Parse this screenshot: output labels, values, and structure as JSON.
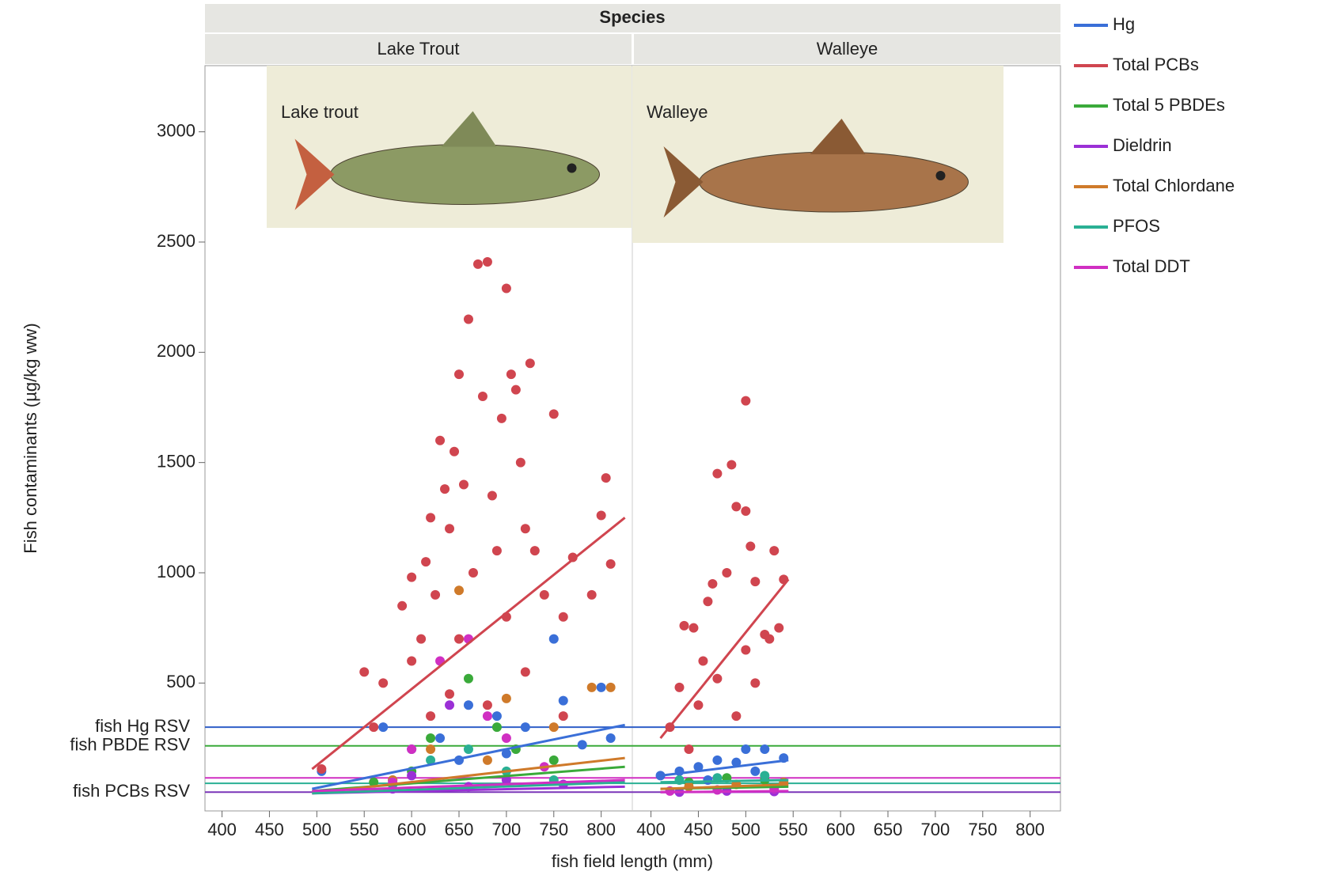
{
  "chart_data": {
    "type": "scatter",
    "title": "Species",
    "xlabel": "fish field length (mm)",
    "ylabel": "Fish contaminants (µg/kg ww)",
    "xlim": [
      382,
      832
    ],
    "ylim": [
      -80,
      3300
    ],
    "xticks": [
      400,
      450,
      500,
      550,
      600,
      650,
      700,
      750,
      800
    ],
    "yticks": [
      500,
      1000,
      1500,
      2000,
      2500,
      3000
    ],
    "panels": [
      {
        "name": "Lake Trout",
        "image_label": "Lake trout"
      },
      {
        "name": "Walleye",
        "image_label": "Walleye"
      }
    ],
    "reference_lines": [
      {
        "label": "fish Hg RSV",
        "value": 300,
        "color": "#2f5fc8"
      },
      {
        "label": "fish PBDE RSV",
        "value": 215,
        "color": "#3aaa3a"
      },
      {
        "value": 70,
        "color": "#d02fc2"
      },
      {
        "value": 45,
        "color": "#2ab094"
      },
      {
        "label": "fish PCBs RSV",
        "value": 5,
        "color": "#7a35b8",
        "label_color": "#d0454f"
      }
    ],
    "series": [
      {
        "name": "Hg",
        "color": "#3a6fd8",
        "panels": [
          {
            "x": [
              505,
              570,
              600,
              630,
              660,
              690,
              720,
              750,
              760,
              800,
              810,
              700,
              650,
              580,
              780
            ],
            "values": [
              100,
              300,
              200,
              250,
              400,
              350,
              300,
              700,
              420,
              480,
              250,
              180,
              150,
              60,
              220
            ],
            "fit_x": [
              495,
              825
            ],
            "fit_y": [
              20,
              310
            ]
          },
          {
            "x": [
              410,
              430,
              450,
              470,
              490,
              500,
              520,
              540,
              460,
              510
            ],
            "values": [
              80,
              100,
              120,
              150,
              140,
              200,
              200,
              160,
              60,
              100
            ],
            "fit_x": [
              410,
              545
            ],
            "fit_y": [
              80,
              150
            ]
          }
        ]
      },
      {
        "name": "Total PCBs",
        "color": "#d0454f",
        "panels": [
          {
            "x": [
              505,
              550,
              570,
              590,
              600,
              610,
              615,
              620,
              625,
              630,
              635,
              640,
              645,
              650,
              655,
              660,
              665,
              670,
              675,
              680,
              685,
              690,
              695,
              700,
              705,
              710,
              715,
              720,
              725,
              730,
              740,
              750,
              760,
              770,
              790,
              800,
              805,
              810,
              600,
              650,
              700,
              680,
              620,
              720,
              560,
              640,
              760
            ],
            "values": [
              110,
              550,
              500,
              850,
              980,
              700,
              1050,
              1250,
              900,
              1600,
              1380,
              1200,
              1550,
              1900,
              1400,
              2150,
              1000,
              2400,
              1800,
              2410,
              1350,
              1100,
              1700,
              2290,
              1900,
              1830,
              1500,
              1200,
              1950,
              1100,
              900,
              1720,
              800,
              1070,
              900,
              1260,
              1430,
              1040,
              600,
              700,
              800,
              400,
              350,
              550,
              300,
              450,
              350
            ],
            "fit_x": [
              495,
              825
            ],
            "fit_y": [
              110,
              1250
            ]
          },
          {
            "x": [
              435,
              445,
              455,
              460,
              465,
              470,
              485,
              480,
              490,
              500,
              500,
              505,
              510,
              520,
              525,
              530,
              535,
              540,
              420,
              430,
              440,
              450,
              470,
              490,
              500,
              510
            ],
            "values": [
              760,
              750,
              600,
              870,
              950,
              1450,
              1490,
              1000,
              1300,
              1280,
              1780,
              1120,
              960,
              720,
              700,
              1100,
              750,
              970,
              300,
              480,
              200,
              400,
              520,
              350,
              650,
              500
            ],
            "fit_x": [
              410,
              545
            ],
            "fit_y": [
              250,
              970
            ]
          }
        ]
      },
      {
        "name": "Total 5 PBDEs",
        "color": "#3aaa3a",
        "panels": [
          {
            "x": [
              620,
              660,
              690,
              710,
              750,
              600,
              560
            ],
            "values": [
              250,
              520,
              300,
              200,
              150,
              100,
              50
            ],
            "fit_x": [
              495,
              825
            ],
            "fit_y": [
              10,
              120
            ]
          },
          {
            "x": [
              440,
              480,
              520
            ],
            "values": [
              50,
              70,
              60
            ],
            "fit_x": [
              410,
              545
            ],
            "fit_y": [
              20,
              30
            ]
          }
        ]
      },
      {
        "name": "Dieldrin",
        "color": "#9b30d6",
        "panels": [
          {
            "x": [
              640,
              600,
              700,
              660,
              760,
              580
            ],
            "values": [
              400,
              80,
              60,
              30,
              40,
              20
            ],
            "fit_x": [
              495,
              825
            ],
            "fit_y": [
              0,
              30
            ]
          },
          {
            "x": [
              430,
              480,
              530
            ],
            "values": [
              5,
              10,
              8
            ],
            "fit_x": [
              410,
              545
            ],
            "fit_y": [
              5,
              8
            ]
          }
        ]
      },
      {
        "name": "Total Chlordane",
        "color": "#cf7a2a",
        "panels": [
          {
            "x": [
              650,
              700,
              750,
              790,
              810,
              620,
              580,
              680
            ],
            "values": [
              920,
              430,
              300,
              480,
              480,
              200,
              60,
              150
            ],
            "fit_x": [
              495,
              825
            ],
            "fit_y": [
              0,
              160
            ]
          },
          {
            "x": [
              440,
              490,
              540
            ],
            "values": [
              30,
              40,
              50
            ],
            "fit_x": [
              410,
              545
            ],
            "fit_y": [
              20,
              40
            ]
          }
        ]
      },
      {
        "name": "PFOS",
        "color": "#2ab094",
        "panels": [
          {
            "x": [
              620,
              660,
              700,
              750,
              580
            ],
            "values": [
              150,
              200,
              100,
              60,
              40
            ],
            "fit_x": [
              495,
              825
            ],
            "fit_y": [
              0,
              50
            ]
          },
          {
            "x": [
              430,
              470,
              520
            ],
            "values": [
              60,
              70,
              80
            ],
            "fit_x": [
              410,
              545
            ],
            "fit_y": [
              50,
              60
            ]
          }
        ]
      },
      {
        "name": "Total DDT",
        "color": "#d02fc2",
        "panels": [
          {
            "x": [
              630,
              660,
              600,
              700,
              740,
              580,
              680
            ],
            "values": [
              600,
              700,
              200,
              250,
              120,
              50,
              350
            ],
            "fit_x": [
              495,
              825
            ],
            "fit_y": [
              10,
              60
            ]
          },
          {
            "x": [
              420,
              470,
              530
            ],
            "values": [
              10,
              15,
              20
            ],
            "fit_x": [
              410,
              545
            ],
            "fit_y": [
              5,
              10
            ]
          }
        ]
      }
    ]
  }
}
